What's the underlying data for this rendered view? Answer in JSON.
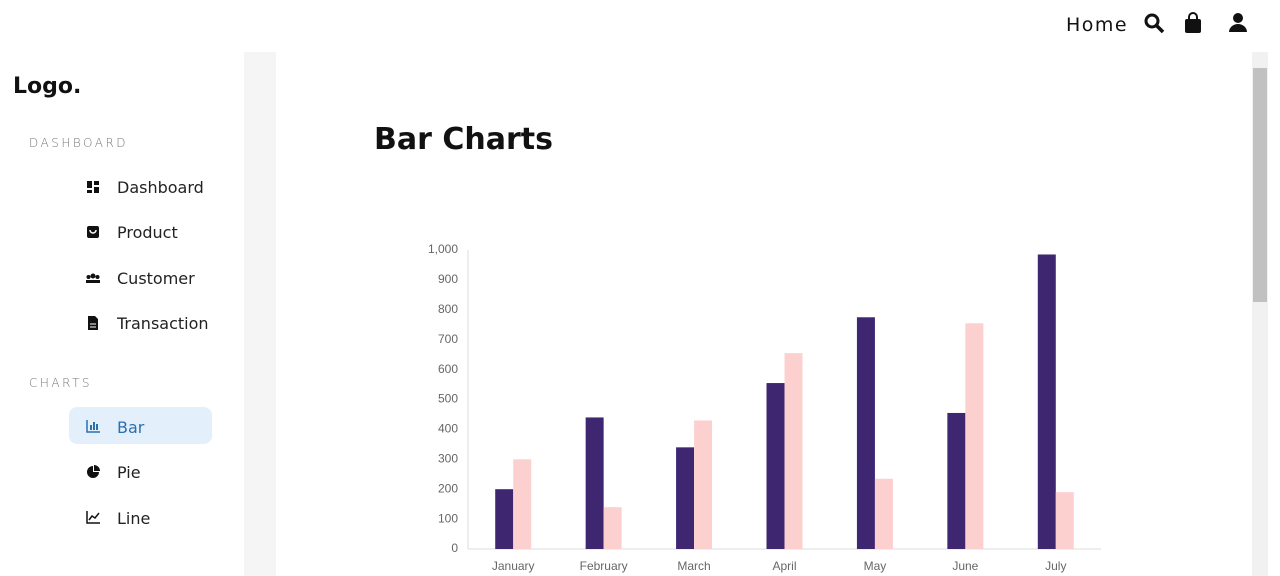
{
  "header": {
    "home": "Home"
  },
  "sidebar": {
    "logo": "Logo.",
    "sections": [
      {
        "title": "DASHBOARD",
        "items": [
          "Dashboard",
          "Product",
          "Customer",
          "Transaction"
        ]
      },
      {
        "title": "CHARTS",
        "items": [
          "Bar",
          "Pie",
          "Line"
        ]
      }
    ]
  },
  "main": {
    "title": "Bar Charts"
  },
  "chart_data": {
    "type": "bar",
    "categories": [
      "January",
      "February",
      "March",
      "April",
      "May",
      "June",
      "July"
    ],
    "series": [
      {
        "color": "#3f2670",
        "values": [
          200,
          440,
          340,
          555,
          775,
          455,
          985
        ]
      },
      {
        "color": "#fdd0d0",
        "values": [
          300,
          140,
          430,
          655,
          235,
          755,
          190
        ]
      }
    ],
    "ylim": [
      0,
      1000
    ],
    "yticks": [
      0,
      100,
      200,
      300,
      400,
      500,
      600,
      700,
      800,
      900,
      {
        "value": 1000,
        "label": "1,000"
      }
    ],
    "grid": false
  }
}
